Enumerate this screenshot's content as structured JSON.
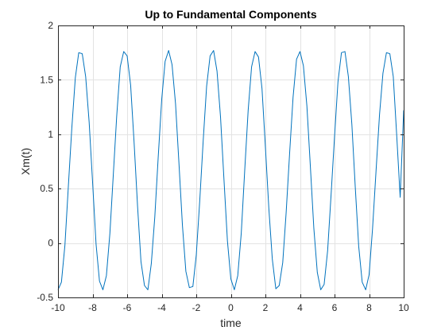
{
  "chart_data": {
    "type": "line",
    "title": "Up to Fundamental Components",
    "xlabel": "time",
    "ylabel": "Xm(t)",
    "xlim": [
      -10,
      10
    ],
    "ylim": [
      -0.5,
      2
    ],
    "xticks": [
      -10,
      -8,
      -6,
      -4,
      -2,
      0,
      2,
      4,
      6,
      8,
      10
    ],
    "yticks": [
      -0.5,
      0,
      0.5,
      1,
      1.5,
      2
    ],
    "xtick_labels": [
      "-10",
      "-8",
      "-6",
      "-4",
      "-2",
      "0",
      "2",
      "4",
      "6",
      "8",
      "10"
    ],
    "ytick_labels": [
      "-0.5",
      "0",
      "0.5",
      "1",
      "1.5",
      "2"
    ],
    "grid": true,
    "series": [
      {
        "color": "#0072BD",
        "x": [
          -10.0,
          -9.8,
          -9.6,
          -9.4,
          -9.2,
          -9.0,
          -8.8,
          -8.6,
          -8.4,
          -8.2,
          -8.0,
          -7.8,
          -7.6,
          -7.4,
          -7.2,
          -7.0,
          -6.8,
          -6.6,
          -6.4,
          -6.2,
          -6.0,
          -5.8,
          -5.6,
          -5.4,
          -5.2,
          -5.0,
          -4.8,
          -4.6,
          -4.4,
          -4.2,
          -4.0,
          -3.8,
          -3.6,
          -3.4,
          -3.2,
          -3.0,
          -2.8,
          -2.6,
          -2.4,
          -2.2,
          -2.0,
          -1.8,
          -1.6,
          -1.4,
          -1.2,
          -1.0,
          -0.8,
          -0.6,
          -0.4,
          -0.2,
          0.0,
          0.2,
          0.4,
          0.6,
          0.8,
          1.0,
          1.2,
          1.4,
          1.6,
          1.8,
          2.0,
          2.2,
          2.4,
          2.6,
          2.8,
          3.0,
          3.2,
          3.4,
          3.6,
          3.8,
          4.0,
          4.2,
          4.4,
          4.6,
          4.8,
          5.0,
          5.2,
          5.4,
          5.6,
          5.8,
          6.0,
          6.2,
          6.4,
          6.6,
          6.8,
          7.0,
          7.2,
          7.4,
          7.6,
          7.8,
          8.0,
          8.2,
          8.4,
          8.6,
          8.8,
          9.0,
          9.2,
          9.4,
          9.6,
          9.8,
          10.0
        ],
        "y": [
          -0.43,
          -0.36,
          -0.02,
          0.52,
          1.06,
          1.52,
          1.75,
          1.74,
          1.53,
          1.11,
          0.56,
          -0.01,
          -0.35,
          -0.43,
          -0.3,
          0.09,
          0.63,
          1.17,
          1.62,
          1.76,
          1.72,
          1.45,
          0.93,
          0.34,
          -0.17,
          -0.39,
          -0.43,
          -0.19,
          0.24,
          0.79,
          1.32,
          1.67,
          1.77,
          1.64,
          1.28,
          0.72,
          0.16,
          -0.26,
          -0.41,
          -0.4,
          -0.11,
          0.38,
          0.94,
          1.44,
          1.72,
          1.77,
          1.58,
          1.16,
          0.59,
          0.02,
          -0.33,
          -0.43,
          -0.3,
          0.09,
          0.66,
          1.22,
          1.62,
          1.76,
          1.71,
          1.42,
          0.88,
          0.32,
          -0.15,
          -0.42,
          -0.39,
          -0.18,
          0.28,
          0.83,
          1.34,
          1.69,
          1.76,
          1.63,
          1.26,
          0.7,
          0.14,
          -0.27,
          -0.43,
          -0.38,
          -0.07,
          0.45,
          0.98,
          1.48,
          1.75,
          1.76,
          1.53,
          1.09,
          0.51,
          -0.03,
          -0.36,
          -0.43,
          -0.29,
          0.13,
          0.66,
          1.18,
          1.56,
          1.75,
          1.74,
          1.53,
          0.98,
          0.42,
          1.22
        ]
      }
    ]
  }
}
